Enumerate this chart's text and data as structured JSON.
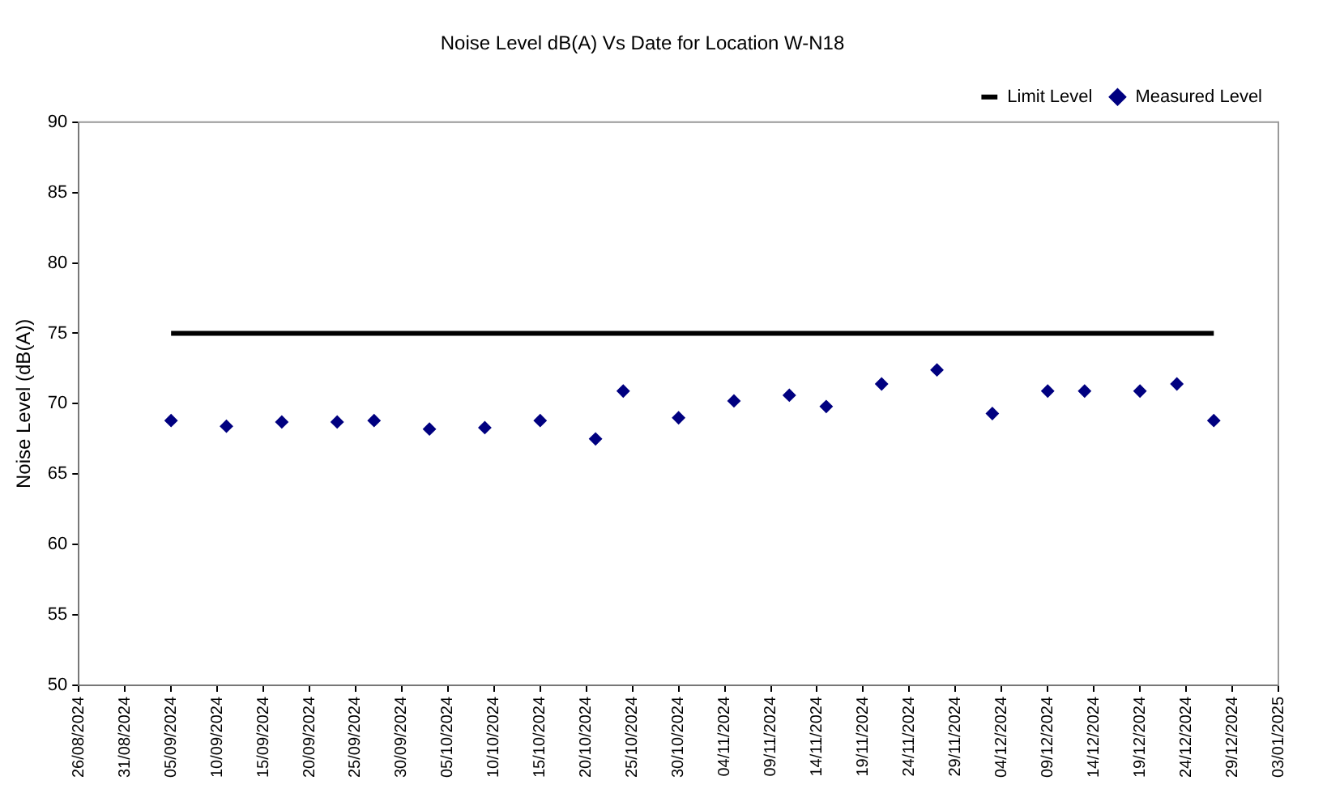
{
  "chart_data": {
    "type": "scatter",
    "title": "Noise Level dB(A) Vs Date for Location W-N18",
    "ylabel": "Noise Level (dB(A))",
    "xlim": [
      "2024-08-26",
      "2025-01-03"
    ],
    "xticks": [
      {
        "value": "2024-08-26",
        "label": "26/08/2024"
      },
      {
        "value": "2024-08-31",
        "label": "31/08/2024"
      },
      {
        "value": "2024-09-05",
        "label": "05/09/2024"
      },
      {
        "value": "2024-09-10",
        "label": "10/09/2024"
      },
      {
        "value": "2024-09-15",
        "label": "15/09/2024"
      },
      {
        "value": "2024-09-20",
        "label": "20/09/2024"
      },
      {
        "value": "2024-09-25",
        "label": "25/09/2024"
      },
      {
        "value": "2024-09-30",
        "label": "30/09/2024"
      },
      {
        "value": "2024-10-05",
        "label": "05/10/2024"
      },
      {
        "value": "2024-10-10",
        "label": "10/10/2024"
      },
      {
        "value": "2024-10-15",
        "label": "15/10/2024"
      },
      {
        "value": "2024-10-20",
        "label": "20/10/2024"
      },
      {
        "value": "2024-10-25",
        "label": "25/10/2024"
      },
      {
        "value": "2024-10-30",
        "label": "30/10/2024"
      },
      {
        "value": "2024-11-04",
        "label": "04/11/2024"
      },
      {
        "value": "2024-11-09",
        "label": "09/11/2024"
      },
      {
        "value": "2024-11-14",
        "label": "14/11/2024"
      },
      {
        "value": "2024-11-19",
        "label": "19/11/2024"
      },
      {
        "value": "2024-11-24",
        "label": "24/11/2024"
      },
      {
        "value": "2024-11-29",
        "label": "29/11/2024"
      },
      {
        "value": "2024-12-04",
        "label": "04/12/2024"
      },
      {
        "value": "2024-12-09",
        "label": "09/12/2024"
      },
      {
        "value": "2024-12-14",
        "label": "14/12/2024"
      },
      {
        "value": "2024-12-19",
        "label": "19/12/2024"
      },
      {
        "value": "2024-12-24",
        "label": "24/12/2024"
      },
      {
        "value": "2024-12-29",
        "label": "29/12/2024"
      },
      {
        "value": "2025-01-03",
        "label": "03/01/2025"
      }
    ],
    "ylim": [
      50,
      90
    ],
    "yticks": [
      50,
      55,
      60,
      65,
      70,
      75,
      80,
      85,
      90
    ],
    "grid": false,
    "legend": "top right",
    "series": [
      {
        "name": "Limit Level",
        "type": "line",
        "marker": "none",
        "color": "#000000",
        "x": [
          "2024-09-05",
          "2024-12-27"
        ],
        "values": [
          75,
          75
        ]
      },
      {
        "name": "Measured Level",
        "type": "scatter",
        "marker": "diamond",
        "color": "#000080",
        "x": [
          "2024-09-05",
          "2024-09-11",
          "2024-09-17",
          "2024-09-23",
          "2024-09-27",
          "2024-10-03",
          "2024-10-09",
          "2024-10-15",
          "2024-10-21",
          "2024-10-24",
          "2024-10-30",
          "2024-11-05",
          "2024-11-11",
          "2024-11-15",
          "2024-11-21",
          "2024-11-27",
          "2024-12-03",
          "2024-12-09",
          "2024-12-13",
          "2024-12-19",
          "2024-12-23",
          "2024-12-27"
        ],
        "values": [
          68.8,
          68.4,
          68.7,
          68.7,
          68.8,
          68.2,
          68.3,
          68.8,
          67.5,
          70.9,
          69.0,
          70.2,
          70.6,
          69.8,
          71.4,
          72.4,
          69.3,
          70.9,
          70.9,
          70.9,
          71.4,
          68.8
        ]
      }
    ]
  }
}
